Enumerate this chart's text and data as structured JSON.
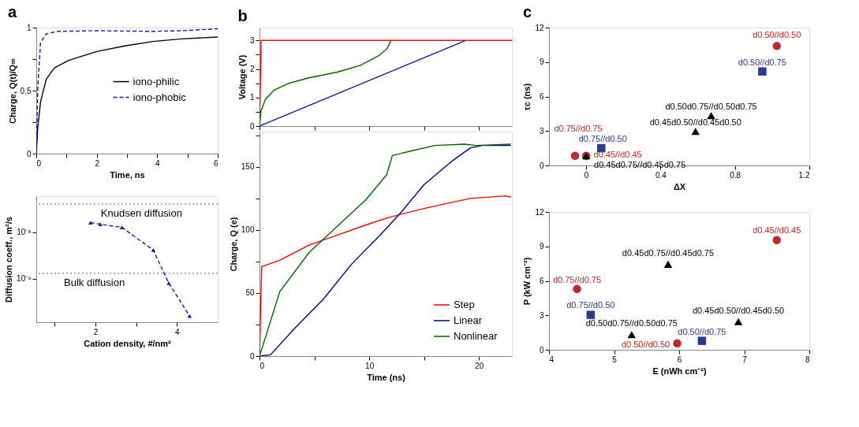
{
  "chart_data": [
    {
      "type": "line",
      "title": "a",
      "xlabel": "Time, ns",
      "ylabel": "Charge, Q(t)/Q∞",
      "xlim": [
        0,
        6
      ],
      "xticks": [
        0,
        {
          "value": 1,
          "label": null
        },
        2,
        {
          "value": 3,
          "label": null
        },
        4,
        {
          "value": 5,
          "label": null
        },
        6
      ],
      "ylim": [
        0,
        1
      ],
      "yticks": [
        0,
        {
          "value": 0.25,
          "label": null
        },
        0.5,
        {
          "value": 0.75,
          "label": null
        },
        1
      ],
      "legend": "right",
      "series": [
        {
          "name": "iono-philic",
          "color": "#000000",
          "line_style": "solid",
          "x": [
            0,
            0.05,
            0.14,
            0.33,
            0.6,
            1.07,
            2.0,
            2.93,
            3.86,
            4.79,
            6
          ],
          "values": [
            0,
            0.21,
            0.41,
            0.59,
            0.68,
            0.74,
            0.81,
            0.855,
            0.89,
            0.91,
            0.925
          ]
        },
        {
          "name": "iono-phobic",
          "color": "#1a1aa0",
          "line_style": "dashed",
          "x": [
            0,
            0.05,
            0.14,
            0.33,
            0.7,
            2,
            3.86,
            4.79,
            6
          ],
          "values": [
            0,
            0.53,
            0.88,
            0.95,
            0.97,
            0.975,
            0.97,
            0.975,
            0.99
          ]
        }
      ]
    },
    {
      "type": "line",
      "xlabel": "Cation density, #/nm²",
      "ylabel": "Diffusion coeff., m²/s",
      "log": true,
      "xlim": [
        0.55,
        5
      ],
      "xticks": [
        {
          "value": 1,
          "label": null
        },
        2,
        {
          "value": 3,
          "label": null
        },
        4
      ],
      "ylim": [
        1.16e-10,
        5.9e-08
      ],
      "yticks": [
        {
          "value": 1e-09,
          "label": "10⁻⁹"
        },
        {
          "value": 1e-08,
          "label": "10⁻⁸"
        }
      ],
      "ref_lines": [
        {
          "axis": "y",
          "value": 4e-08,
          "label": "Knudsen diffusion",
          "color": "#666666",
          "line_style": "dotted"
        },
        {
          "axis": "y",
          "value": 1.3e-09,
          "label": "Bulk diffusion",
          "color": "#666666",
          "line_style": "dotted"
        }
      ],
      "series": [
        {
          "color": "#1a1aa0",
          "line_style": "dashed",
          "marker": "triangle",
          "x": [
            1.88,
            2.12,
            2.65,
            3.42,
            3.8,
            4.31
          ],
          "values": [
            1.6e-08,
            1.47e-08,
            1.26e-08,
            4.1e-09,
            8e-10,
            1.57e-10
          ]
        }
      ]
    },
    {
      "type": "line",
      "title": "b",
      "ylabel": "Voltage (V)",
      "tick_labels": "y",
      "xlim": [
        0,
        23
      ],
      "xticks": [
        {
          "value": 0,
          "label": null
        },
        {
          "value": 5,
          "label": null
        },
        {
          "value": 10,
          "label": null
        },
        {
          "value": 15,
          "label": null
        },
        {
          "value": 20,
          "label": null
        }
      ],
      "ylim": [
        0,
        3.45
      ],
      "yticks": [
        0,
        {
          "value": 0.5,
          "label": null
        },
        1,
        {
          "value": 1.5,
          "label": null
        },
        2,
        {
          "value": 2.5,
          "label": null
        },
        3
      ],
      "series": [
        {
          "color": "#1a1aa0",
          "x": [
            0,
            18.8
          ],
          "values": [
            0,
            3
          ]
        },
        {
          "color": "#006400",
          "x": [
            0,
            0.13,
            0.53,
            1.3,
            2.6,
            4.5,
            7.1,
            9.2,
            10.8,
            11.6,
            12.0
          ],
          "values": [
            0,
            0.52,
            0.93,
            1.25,
            1.49,
            1.69,
            1.89,
            2.13,
            2.45,
            2.7,
            3.0
          ]
        },
        {
          "color": "#ff0000",
          "x": [
            0,
            0.15,
            23
          ],
          "values": [
            0,
            3,
            3
          ]
        }
      ]
    },
    {
      "type": "line",
      "xlabel": "Time (ns)",
      "ylabel": "Charge, Q (e)",
      "xlim": [
        0,
        23
      ],
      "xticks": [
        0,
        {
          "value": 5,
          "label": null
        },
        10,
        {
          "value": 15,
          "label": null
        },
        20
      ],
      "ylim": [
        0,
        178
      ],
      "yticks": [
        0,
        {
          "value": 25,
          "label": null
        },
        50,
        {
          "value": 75,
          "label": null
        },
        100,
        {
          "value": 125,
          "label": null
        },
        150,
        {
          "value": 175,
          "label": null
        }
      ],
      "legend": "bottom right",
      "series": [
        {
          "name": "Step",
          "color": "#ff0000",
          "x": [
            0,
            0.2,
            1.84,
            4.5,
            7.1,
            9.7,
            11.8,
            15,
            17.6,
            19.2,
            22.4,
            22.9
          ],
          "values": [
            0,
            71,
            76,
            88,
            96,
            104,
            110,
            117,
            122,
            125,
            127,
            126
          ]
        },
        {
          "name": "Linear",
          "color": "#00008b",
          "x": [
            0,
            1,
            3.2,
            5.8,
            8.4,
            11,
            12.9,
            15,
            17.6,
            19.2,
            20.3,
            22.9
          ],
          "values": [
            0,
            1,
            22,
            45,
            73,
            96,
            114,
            136,
            155,
            165,
            167,
            167
          ]
        },
        {
          "name": "Nonlinear",
          "color": "#006400",
          "x": [
            0,
            1.84,
            4.5,
            7.1,
            9.7,
            11.6,
            12.1,
            14,
            16,
            18.7,
            19.7,
            22.9
          ],
          "values": [
            0,
            51,
            82,
            103,
            124,
            144,
            159,
            163,
            167,
            168,
            167,
            168
          ]
        }
      ]
    },
    {
      "type": "scatter",
      "title": "c",
      "xlabel": "ΔX",
      "ylabel": "τc (ns)",
      "xlim": [
        -0.2,
        1.2
      ],
      "xticks": [
        0,
        0.4,
        0.8,
        1.2
      ],
      "ylim": [
        0,
        12
      ],
      "yticks": [
        0,
        3,
        6,
        9,
        12
      ],
      "series": [
        {
          "color": "#c0282d",
          "marker": "circle",
          "x": [
            1.025,
            -0.06,
            0
          ],
          "values": [
            10.4,
            0.84,
            0.84
          ],
          "value_labels": [
            "d0.50//d0.50",
            "d0.75//d0.75",
            "d0.45//d0.45"
          ]
        },
        {
          "color": "#2b3990",
          "marker": "square",
          "x": [
            0.947,
            0.081
          ],
          "values": [
            8.18,
            1.5
          ],
          "value_labels": [
            "d0.50//d0.75",
            "d0.75//d0.50"
          ]
        },
        {
          "color": "#000000",
          "marker": "triangle",
          "x": [
            0.672,
            0.588,
            0
          ],
          "values": [
            4.34,
            2.96,
            0.84
          ],
          "value_labels": [
            "d0.50d0.75//d0.50d0.75",
            "d0.45d0.50//d0.45d0.50",
            "d0.45d0.75//d0.45d0.75"
          ]
        }
      ]
    },
    {
      "type": "scatter",
      "xlabel": "E (nWh cm⁻²)",
      "ylabel": "P (kW cm⁻²)",
      "xlim": [
        4,
        8
      ],
      "xticks": [
        4,
        5,
        6,
        7,
        8
      ],
      "ylim": [
        0,
        12
      ],
      "yticks": [
        0,
        3,
        6,
        9,
        12
      ],
      "series": [
        {
          "color": "#c0282d",
          "marker": "circle",
          "x": [
            7.5,
            4.43,
            5.97
          ],
          "values": [
            9.55,
            5.29,
            0.57
          ],
          "value_labels": [
            "d0.45//d0.45",
            "d0.75//d0.75",
            "d0.50//d0.50"
          ]
        },
        {
          "color": "#2b3990",
          "marker": "square",
          "x": [
            4.64,
            6.35
          ],
          "values": [
            3.04,
            0.78
          ],
          "value_labels": [
            "d0.75//d0.50",
            "d0.50//d0.75"
          ]
        },
        {
          "color": "#000000",
          "marker": "triangle",
          "x": [
            5.83,
            5.27,
            6.91
          ],
          "values": [
            7.45,
            1.32,
            2.45
          ],
          "value_labels": [
            "d0.45d0.75//d0.45d0.75",
            "d0.50d0.75//d0.50d0.75",
            "d0.45d0.50//d0.45d0.50"
          ]
        }
      ]
    }
  ]
}
